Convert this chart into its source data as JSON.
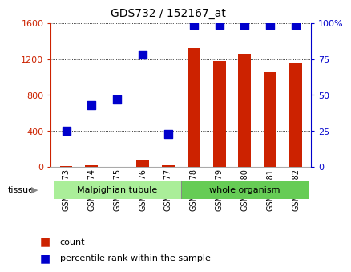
{
  "title": "GDS732 / 152167_at",
  "samples": [
    "GSM29173",
    "GSM29174",
    "GSM29175",
    "GSM29176",
    "GSM29177",
    "GSM29178",
    "GSM29179",
    "GSM29180",
    "GSM29181",
    "GSM29182"
  ],
  "counts": [
    10,
    15,
    5,
    80,
    15,
    1320,
    1175,
    1260,
    1050,
    1150
  ],
  "percentiles": [
    25,
    43,
    47,
    78,
    23,
    99,
    99,
    99,
    99,
    99
  ],
  "tissue_groups": [
    {
      "label": "Malpighian tubule",
      "start": 0,
      "end": 5,
      "color": "#aaee99"
    },
    {
      "label": "whole organism",
      "start": 5,
      "end": 10,
      "color": "#66cc55"
    }
  ],
  "bar_color": "#cc2200",
  "dot_color": "#0000cc",
  "left_axis_color": "#cc2200",
  "right_axis_color": "#0000cc",
  "ylim_left": [
    0,
    1600
  ],
  "ylim_right": [
    0,
    100
  ],
  "left_ticks": [
    0,
    400,
    800,
    1200,
    1600
  ],
  "right_ticks": [
    0,
    25,
    50,
    75,
    100
  ],
  "right_tick_labels": [
    "0",
    "25",
    "50",
    "75",
    "100%"
  ],
  "grid_color": "#000000",
  "bg_color": "#ffffff",
  "legend_count_label": "count",
  "legend_pct_label": "percentile rank within the sample",
  "tissue_label": "tissue",
  "bar_width": 0.5,
  "dot_size": 48
}
